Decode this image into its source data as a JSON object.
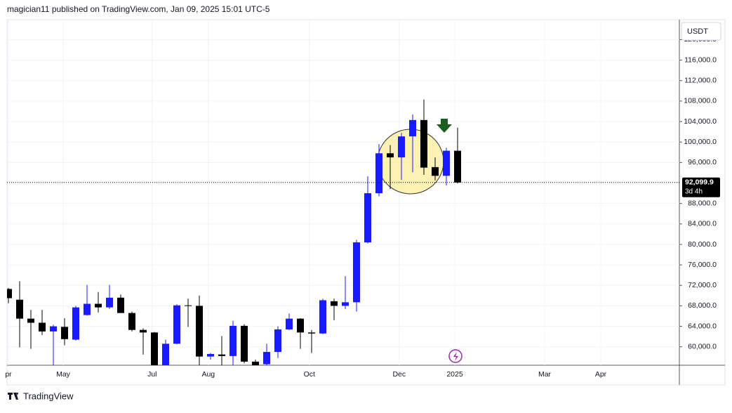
{
  "header": {
    "text": "magician11 published on TradingView.com, Jan 09, 2025 15:01 UTC-5"
  },
  "currency": "USDT",
  "footer": {
    "brand": "TradingView"
  },
  "chart_data": {
    "type": "candlestick",
    "x": [
      0,
      1,
      2,
      3,
      4,
      5,
      6,
      7,
      8,
      9,
      10,
      11,
      12,
      13,
      14,
      15,
      16,
      17,
      18,
      19,
      20,
      21,
      22,
      23,
      24,
      25,
      26,
      27,
      28,
      29,
      30,
      31,
      32,
      33,
      34,
      35,
      36,
      37,
      38,
      39,
      40
    ],
    "open": [
      71300,
      69200,
      65500,
      64700,
      63000,
      63900,
      61400,
      66200,
      68400,
      67700,
      69600,
      66600,
      63300,
      62800,
      56400,
      60600,
      68100,
      68000,
      58100,
      58500,
      58200,
      64100,
      57100,
      56600,
      59000,
      63400,
      65500,
      62800,
      62600,
      68900,
      68000,
      68700,
      80400,
      90000,
      97800,
      97000,
      101100,
      104300,
      95100,
      93400,
      98300
    ],
    "high": [
      71500,
      72800,
      67200,
      67200,
      64300,
      65600,
      68000,
      72100,
      70700,
      72100,
      70200,
      66900,
      63600,
      62900,
      61400,
      68300,
      69400,
      70000,
      58800,
      62100,
      65100,
      64400,
      57500,
      60600,
      64000,
      66500,
      65600,
      63300,
      69400,
      69400,
      73800,
      80900,
      93300,
      99600,
      99400,
      101800,
      105400,
      108300,
      97000,
      98900,
      102800
    ],
    "low": [
      68500,
      59900,
      59600,
      62300,
      56000,
      60300,
      61200,
      66100,
      66700,
      67400,
      66600,
      63000,
      58500,
      56000,
      56000,
      60500,
      63900,
      56000,
      57500,
      56000,
      56000,
      56800,
      56000,
      56000,
      57800,
      63300,
      59600,
      58800,
      62500,
      65200,
      67400,
      66900,
      80200,
      89400,
      90800,
      92600,
      94100,
      93600,
      92500,
      91500,
      91900
    ],
    "close": [
      69500,
      65500,
      64700,
      63000,
      64000,
      61500,
      67700,
      68400,
      67700,
      69600,
      66600,
      63300,
      62800,
      56400,
      60600,
      68100,
      68000,
      58100,
      58600,
      58200,
      64100,
      57100,
      56400,
      59000,
      63400,
      65500,
      62800,
      62600,
      69100,
      68000,
      68700,
      80400,
      90000,
      97800,
      97000,
      101100,
      104300,
      95000,
      93400,
      98300,
      92100
    ],
    "up_color": "#1a1aff",
    "down_color": "#000000",
    "xlim": [
      -0.125,
      59.75
    ],
    "xticks": [
      {
        "value": 0,
        "label": "pr"
      },
      {
        "value": 4.875,
        "label": "May"
      },
      {
        "value": 12.8,
        "label": "Jul"
      },
      {
        "value": 17.8,
        "label": "Aug"
      },
      {
        "value": 26.8,
        "label": "Oct"
      },
      {
        "value": 34.8,
        "label": "Dec"
      },
      {
        "value": 39.75,
        "label": "2025"
      },
      {
        "value": 47.75,
        "label": "Mar"
      },
      {
        "value": 52.75,
        "label": "Apr"
      }
    ],
    "ylim": [
      56400,
      123900
    ],
    "yticks": [
      {
        "value": 60000,
        "label": "60,000.0"
      },
      {
        "value": 64000,
        "label": "64,000.0"
      },
      {
        "value": 68000,
        "label": "68,000.0"
      },
      {
        "value": 72000,
        "label": "72,000.0"
      },
      {
        "value": 76000,
        "label": "76,000.0"
      },
      {
        "value": 80000,
        "label": "80,000.0"
      },
      {
        "value": 84000,
        "label": "84,000.0"
      },
      {
        "value": 88000,
        "label": "88,000.0"
      },
      {
        "value": 96000,
        "label": "96,000.0"
      },
      {
        "value": 100000,
        "label": "100,000.0"
      },
      {
        "value": 104000,
        "label": "104,000.0"
      },
      {
        "value": 108000,
        "label": "108,000.0"
      },
      {
        "value": 112000,
        "label": "112,000.0"
      },
      {
        "value": 116000,
        "label": "116,000.0"
      },
      {
        "value": 120000,
        "label": "120,000.0"
      }
    ],
    "grid": true,
    "last_price": {
      "value": 92099.9,
      "label": "92,099.9"
    },
    "countdown": "3d 4h"
  }
}
